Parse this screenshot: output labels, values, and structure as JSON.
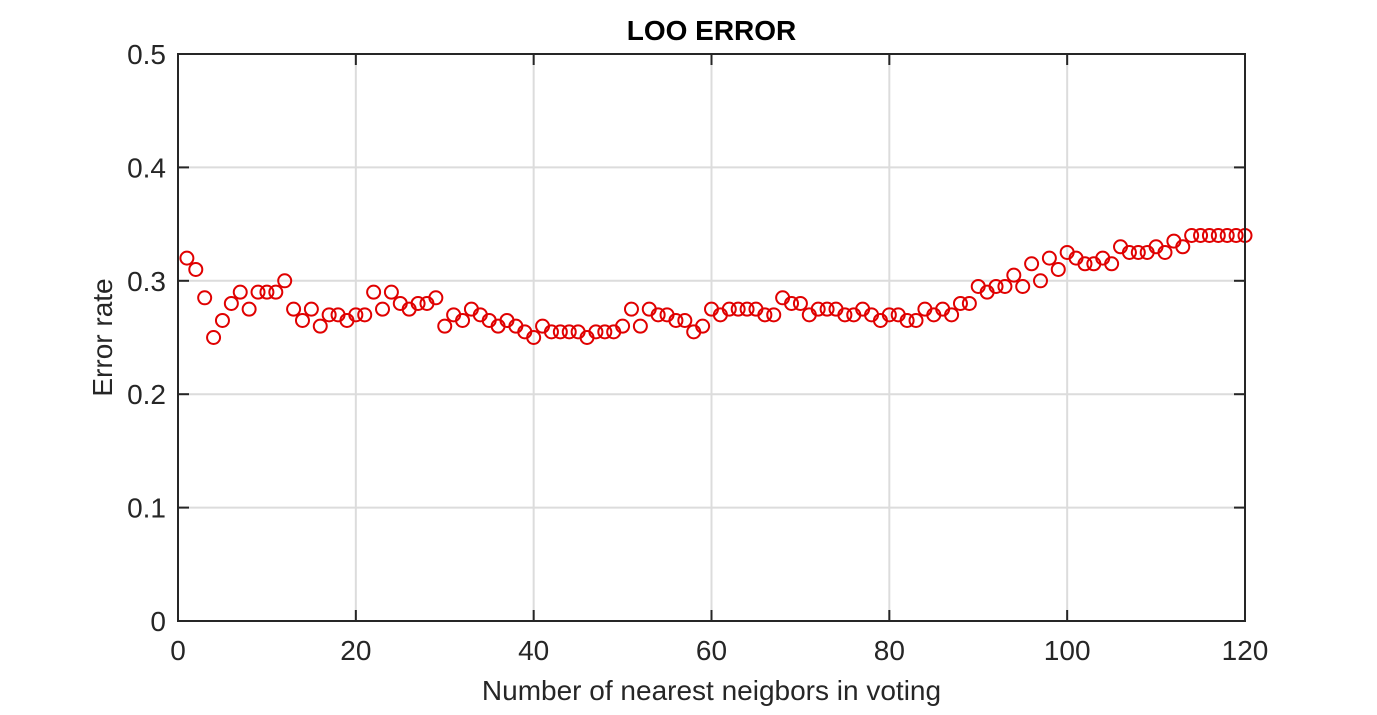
{
  "chart_data": {
    "type": "scatter",
    "title": "LOO ERROR",
    "xlabel": "Number of nearest neigbors in voting",
    "ylabel": "Error rate",
    "xlim": [
      0,
      120
    ],
    "ylim": [
      0,
      0.5
    ],
    "xticks": [
      0,
      20,
      40,
      60,
      80,
      100,
      120
    ],
    "yticks": [
      0,
      0.1,
      0.2,
      0.3,
      0.4,
      0.5
    ],
    "xtick_labels": [
      "0",
      "20",
      "40",
      "60",
      "80",
      "100",
      "120"
    ],
    "ytick_labels": [
      "0",
      "0.1",
      "0.2",
      "0.3",
      "0.4",
      "0.5"
    ],
    "grid": true,
    "marker": "circle-open",
    "colors": {
      "marker": "#e00000",
      "axes": "#262626",
      "grid": "#dcdcdc"
    },
    "x": [
      1,
      2,
      3,
      4,
      5,
      6,
      7,
      8,
      9,
      10,
      11,
      12,
      13,
      14,
      15,
      16,
      17,
      18,
      19,
      20,
      21,
      22,
      23,
      24,
      25,
      26,
      27,
      28,
      29,
      30,
      31,
      32,
      33,
      34,
      35,
      36,
      37,
      38,
      39,
      40,
      41,
      42,
      43,
      44,
      45,
      46,
      47,
      48,
      49,
      50,
      51,
      52,
      53,
      54,
      55,
      56,
      57,
      58,
      59,
      60,
      61,
      62,
      63,
      64,
      65,
      66,
      67,
      68,
      69,
      70,
      71,
      72,
      73,
      74,
      75,
      76,
      77,
      78,
      79,
      80,
      81,
      82,
      83,
      84,
      85,
      86,
      87,
      88,
      89,
      90,
      91,
      92,
      93,
      94,
      95,
      96,
      97,
      98,
      99,
      100,
      101,
      102,
      103,
      104,
      105,
      106,
      107,
      108,
      109,
      110,
      111,
      112,
      113,
      114,
      115,
      116,
      117,
      118,
      119,
      120
    ],
    "y": [
      0.32,
      0.31,
      0.285,
      0.25,
      0.265,
      0.28,
      0.29,
      0.275,
      0.29,
      0.29,
      0.29,
      0.3,
      0.275,
      0.265,
      0.275,
      0.26,
      0.27,
      0.27,
      0.265,
      0.27,
      0.27,
      0.29,
      0.275,
      0.29,
      0.28,
      0.275,
      0.28,
      0.28,
      0.285,
      0.26,
      0.27,
      0.265,
      0.275,
      0.27,
      0.265,
      0.26,
      0.265,
      0.26,
      0.255,
      0.25,
      0.26,
      0.255,
      0.255,
      0.255,
      0.255,
      0.25,
      0.255,
      0.255,
      0.255,
      0.26,
      0.275,
      0.26,
      0.275,
      0.27,
      0.27,
      0.265,
      0.265,
      0.255,
      0.26,
      0.275,
      0.27,
      0.275,
      0.275,
      0.275,
      0.275,
      0.27,
      0.27,
      0.285,
      0.28,
      0.28,
      0.27,
      0.275,
      0.275,
      0.275,
      0.27,
      0.27,
      0.275,
      0.27,
      0.265,
      0.27,
      0.27,
      0.265,
      0.265,
      0.275,
      0.27,
      0.275,
      0.27,
      0.28,
      0.28,
      0.295,
      0.29,
      0.295,
      0.295,
      0.305,
      0.295,
      0.315,
      0.3,
      0.32,
      0.31,
      0.325,
      0.32,
      0.315,
      0.315,
      0.32,
      0.315,
      0.33,
      0.325,
      0.325,
      0.325,
      0.33,
      0.325,
      0.335,
      0.33,
      0.34,
      0.34,
      0.34,
      0.34,
      0.34,
      0.34,
      0.34
    ]
  }
}
